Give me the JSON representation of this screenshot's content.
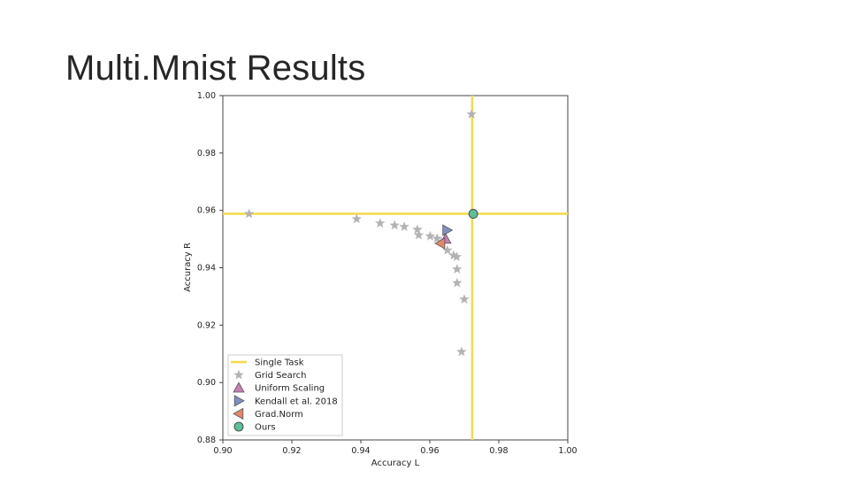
{
  "slide": {
    "title": "Multi.Mnist Results"
  },
  "chart_data": {
    "type": "scatter",
    "xlabel": "Accuracy L",
    "ylabel": "Accuracy R",
    "xlim": [
      0.9,
      1.0
    ],
    "ylim": [
      0.88,
      1.0
    ],
    "xticks": [
      "0.90",
      "0.92",
      "0.94",
      "0.96",
      "0.98",
      "1.00"
    ],
    "yticks": [
      "0.88",
      "0.90",
      "0.92",
      "0.94",
      "0.96",
      "0.98",
      "1.00"
    ],
    "grid": false,
    "legend_position": "lower-left",
    "reference_lines": {
      "vertical_x": 0.9723,
      "horizontal_y": 0.9588
    },
    "series": [
      {
        "name": "Single Task",
        "marker": "line",
        "color": "#f5d949"
      },
      {
        "name": "Grid Search",
        "marker": "star",
        "color": "#b3b3b3",
        "x": [
          0.9076,
          0.9388,
          0.9456,
          0.9498,
          0.9526,
          0.9564,
          0.9568,
          0.9601,
          0.9621,
          0.9634,
          0.9651,
          0.9669,
          0.9678,
          0.9679,
          0.9679,
          0.97,
          0.9692,
          0.9721
        ],
        "y": [
          0.9588,
          0.957,
          0.9555,
          0.9548,
          0.9543,
          0.9533,
          0.9514,
          0.951,
          0.9502,
          0.949,
          0.9461,
          0.9443,
          0.9438,
          0.9395,
          0.9347,
          0.929,
          0.9107,
          0.9935
        ]
      },
      {
        "name": "Uniform Scaling",
        "marker": "triangle-up",
        "color": "#c77fb4",
        "x": [
          0.9646
        ],
        "y": [
          0.95
        ]
      },
      {
        "name": "Kendall et al. 2018",
        "marker": "triangle-right",
        "color": "#7f8fc2",
        "x": [
          0.965
        ],
        "y": [
          0.9531
        ]
      },
      {
        "name": "Grad.Norm",
        "marker": "triangle-left",
        "color": "#e08a6a",
        "x": [
          0.9631
        ],
        "y": [
          0.9485
        ]
      },
      {
        "name": "Ours",
        "marker": "circle",
        "color": "#5fbf9a",
        "x": [
          0.9726
        ],
        "y": [
          0.9588
        ]
      }
    ]
  }
}
